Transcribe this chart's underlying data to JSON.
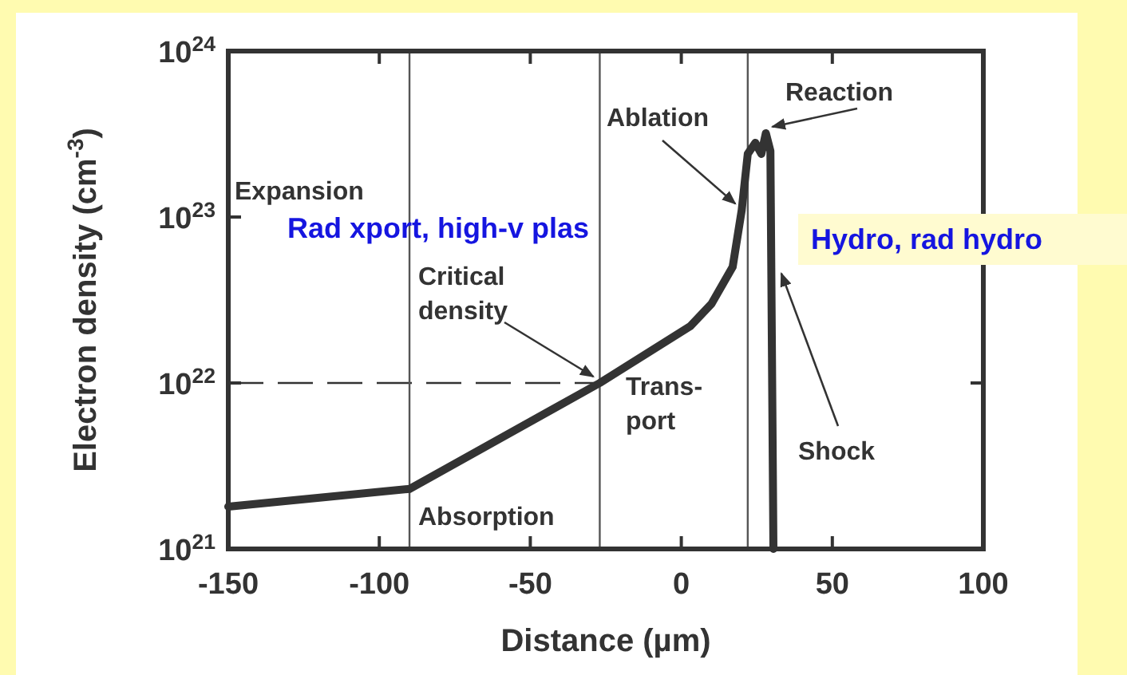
{
  "chart_data": {
    "type": "line",
    "xlabel": "Distance (µm)",
    "ylabel": "Electron density (cm$^{-3}$)",
    "x": [
      -150,
      -90,
      -27,
      3,
      10,
      17,
      20,
      22,
      24.5,
      26.5,
      28,
      29.5,
      30.5
    ],
    "series": [
      {
        "color": "#333333",
        "values": [
          1.8e+21,
          2.3e+21,
          1e+22,
          2.2e+22,
          3e+22,
          5e+22,
          1.1e+23,
          2.4e+23,
          2.8e+23,
          2.4e+23,
          3.2e+23,
          2.5e+23,
          1e+21
        ]
      }
    ],
    "xlim": [
      -150,
      100
    ],
    "xticks": [
      -150,
      -100,
      -50,
      0,
      50,
      100
    ],
    "ylim": [
      1e+21,
      1e+24
    ],
    "yticks": [
      {
        "value": 1e+21,
        "label": "10$^{21}$"
      },
      {
        "value": 1e+22,
        "label": "10$^{22}$"
      },
      {
        "value": 1e+23,
        "label": "10$^{23}$"
      },
      {
        "value": 1e+24,
        "label": "10$^{24}$"
      }
    ],
    "log": "y",
    "grid": false,
    "marker": "none",
    "line_style": "solid",
    "ref_lines": [
      {
        "axis": "y",
        "value": 1e+22,
        "line_style": "dashed",
        "color": "#333333"
      },
      {
        "axis": "x",
        "value": -90,
        "line_style": "solid",
        "color": "#555555"
      },
      {
        "axis": "x",
        "value": -27,
        "line_style": "solid",
        "color": "#555555"
      },
      {
        "axis": "x",
        "value": 22,
        "line_style": "solid",
        "color": "#555555"
      }
    ],
    "annotations": [
      "Expansion",
      "Absorption",
      {
        "text": "Critical\ndensity",
        "x": -27,
        "y": 1e+22
      },
      "Trans-\nport",
      {
        "text": "Ablation",
        "x": 20,
        "y": 1.1e+23
      },
      {
        "text": "Reaction",
        "x": 28,
        "y": 3.2e+23
      },
      {
        "text": "Shock",
        "x": 31,
        "y": 5e+22
      },
      "Rad xport, high-v plas",
      "Hydro, rad hydro"
    ]
  }
}
